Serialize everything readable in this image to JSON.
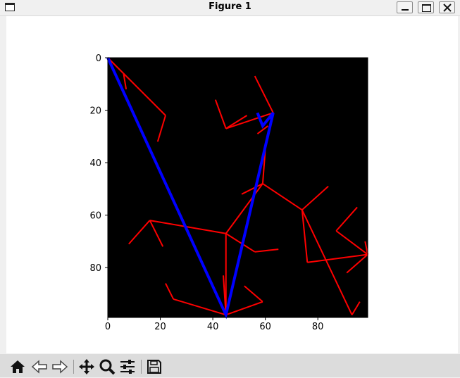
{
  "window": {
    "title": "Figure 1"
  },
  "toolbar": {
    "buttons": [
      "home-icon",
      "back-icon",
      "forward-icon",
      "pan-icon",
      "zoom-icon",
      "configure-subplots-icon",
      "save-icon"
    ]
  },
  "colors": {
    "plot_bg": "#000000",
    "edge": "#ff0000",
    "path": "#0000ff"
  },
  "chart_data": {
    "type": "line",
    "title": "",
    "xlabel": "",
    "ylabel": "",
    "xlim": [
      0,
      99
    ],
    "ylim": [
      99,
      0
    ],
    "y_inverted": true,
    "grid": false,
    "xticks": [
      0,
      20,
      40,
      60,
      80
    ],
    "yticks": [
      0,
      20,
      40,
      60,
      80
    ],
    "series": [
      {
        "color": "#ff0000",
        "segments": [
          [
            [
              0,
              0
            ],
            [
              6,
              6
            ]
          ],
          [
            [
              6,
              6
            ],
            [
              7,
              12
            ]
          ],
          [
            [
              6,
              6
            ],
            [
              22,
              22
            ]
          ],
          [
            [
              22,
              22
            ],
            [
              19,
              32
            ]
          ],
          [
            [
              41,
              16
            ],
            [
              45,
              27
            ]
          ],
          [
            [
              45,
              27
            ],
            [
              53,
              22
            ]
          ],
          [
            [
              45,
              27
            ],
            [
              63,
              21
            ]
          ],
          [
            [
              56,
              7
            ],
            [
              63,
              21
            ]
          ],
          [
            [
              61,
              26
            ],
            [
              57,
              29
            ]
          ],
          [
            [
              60,
              35
            ],
            [
              59,
              48
            ]
          ],
          [
            [
              51,
              52
            ],
            [
              59,
              48
            ]
          ],
          [
            [
              59,
              48
            ],
            [
              45,
              67
            ]
          ],
          [
            [
              59,
              48
            ],
            [
              74,
              58
            ]
          ],
          [
            [
              74,
              58
            ],
            [
              84,
              49
            ]
          ],
          [
            [
              74,
              58
            ],
            [
              76,
              78
            ]
          ],
          [
            [
              76,
              78
            ],
            [
              99,
              75
            ]
          ],
          [
            [
              74,
              58
            ],
            [
              93,
              98
            ]
          ],
          [
            [
              93,
              98
            ],
            [
              96,
              93
            ]
          ],
          [
            [
              87,
              66
            ],
            [
              95,
              57
            ]
          ],
          [
            [
              87,
              66
            ],
            [
              99,
              75
            ]
          ],
          [
            [
              99,
              75
            ],
            [
              91,
              82
            ]
          ],
          [
            [
              99,
              75
            ],
            [
              98,
              70
            ]
          ],
          [
            [
              16,
              62
            ],
            [
              8,
              71
            ]
          ],
          [
            [
              16,
              62
            ],
            [
              21,
              72
            ]
          ],
          [
            [
              16,
              62
            ],
            [
              45,
              67
            ]
          ],
          [
            [
              45,
              67
            ],
            [
              56,
              74
            ]
          ],
          [
            [
              56,
              74
            ],
            [
              65,
              73
            ]
          ],
          [
            [
              45,
              67
            ],
            [
              45,
              98
            ]
          ],
          [
            [
              45,
              98
            ],
            [
              44,
              83
            ]
          ],
          [
            [
              45,
              98
            ],
            [
              25,
              92
            ]
          ],
          [
            [
              25,
              92
            ],
            [
              22,
              86
            ]
          ],
          [
            [
              45,
              98
            ],
            [
              59,
              93
            ]
          ],
          [
            [
              59,
              93
            ],
            [
              52,
              87
            ]
          ]
        ]
      },
      {
        "color": "#0000ff",
        "points": [
          [
            0,
            0
          ],
          [
            45,
            98
          ],
          [
            63,
            21
          ],
          [
            59,
            26
          ],
          [
            57,
            21
          ]
        ]
      }
    ]
  }
}
